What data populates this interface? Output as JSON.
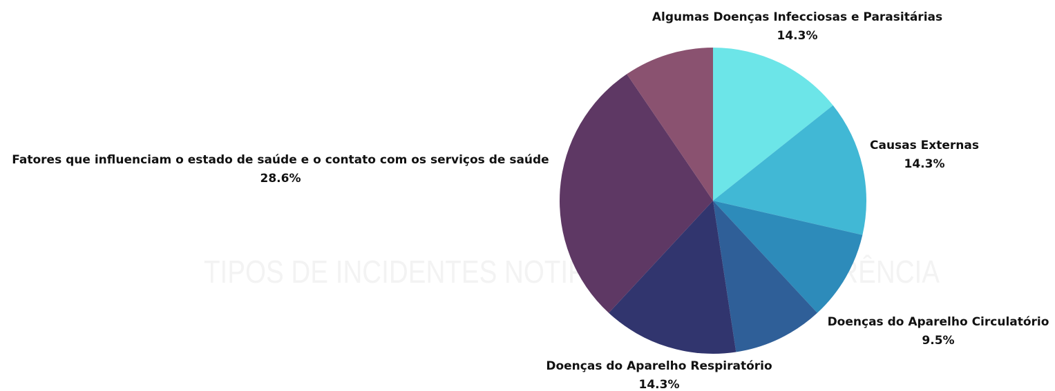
{
  "chart_data": {
    "type": "pie",
    "title": "TIPOS DE INCIDENTES NOTIFICADOS POR OCORRÊNCIA",
    "categories": [
      "Algumas Doenças Infecciosas e Parasitárias",
      "Causas Externas",
      "Doenças do Aparelho Circulatório",
      null,
      "Doenças do Aparelho Respiratório",
      "Fatores que influenciam o estado de saúde e o contato com os serviços de saúde",
      null
    ],
    "values": [
      14.3,
      14.3,
      9.5,
      9.5,
      14.3,
      28.6,
      9.5
    ],
    "value_labels": [
      "14.3%",
      "14.3%",
      "9.5%",
      null,
      "14.3%",
      "28.6%",
      null
    ],
    "colors": [
      "#6ce5e8",
      "#41b8d5",
      "#2d8bba",
      "#2f5f98",
      "#31356e",
      "#5e3864",
      "#8a5270"
    ]
  }
}
